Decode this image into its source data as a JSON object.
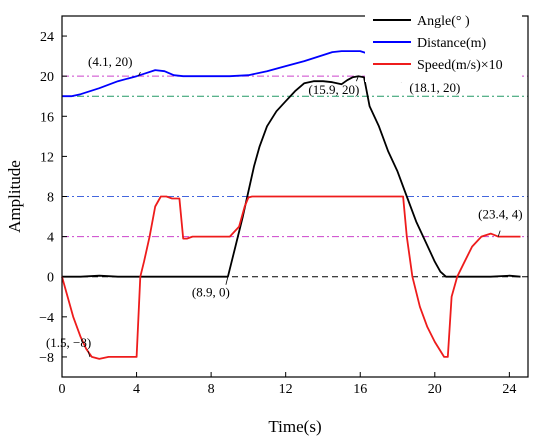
{
  "chart_data": {
    "type": "line",
    "xlabel": "Time(s)",
    "ylabel": "Amplitude",
    "xlim": [
      0,
      25
    ],
    "ylim": [
      -10,
      26
    ],
    "xticks": [
      0,
      4,
      8,
      12,
      16,
      20,
      24
    ],
    "yticks": [
      -8,
      -4,
      0,
      4,
      8,
      12,
      16,
      20,
      24
    ],
    "ytick_labels": [
      "−8",
      "−4",
      "0",
      "4",
      "8",
      "12",
      "16",
      "20",
      "24"
    ],
    "legend_position": "top-right",
    "series": [
      {
        "name": "Angle(° )",
        "color": "#000000",
        "x": [
          0,
          1,
          2,
          3,
          4,
          5,
          6,
          7,
          8,
          8.6,
          8.9,
          9.3,
          9.7,
          10,
          10.3,
          10.6,
          11,
          11.5,
          12,
          12.5,
          13,
          13.5,
          14,
          14.5,
          15,
          15.3,
          15.6,
          15.9,
          16.2,
          16.5,
          17,
          17.5,
          18,
          18.5,
          19,
          19.5,
          20,
          20.3,
          20.6,
          21,
          22,
          23,
          24,
          24.6
        ],
        "y": [
          0,
          0,
          0.1,
          0,
          0,
          0,
          0,
          0,
          0,
          0,
          0,
          3,
          6,
          8.5,
          11,
          13,
          15,
          16.5,
          17.5,
          18.5,
          19.3,
          19.5,
          19.5,
          19.4,
          19.2,
          19.6,
          19.9,
          20,
          19.9,
          17,
          15,
          12.5,
          10.5,
          8,
          5.5,
          3.5,
          1.5,
          0.5,
          0,
          0,
          0,
          0,
          0.1,
          0
        ]
      },
      {
        "name": "Distance(m)",
        "color": "#0000ff",
        "x": [
          0,
          0.5,
          1,
          2,
          3,
          4,
          4.5,
          5,
          5.5,
          6,
          6.5,
          7,
          8,
          9,
          10,
          11,
          12,
          13,
          14,
          14.5,
          15,
          15.5,
          16,
          16.5,
          17,
          18,
          19,
          20,
          21,
          22,
          23,
          24,
          24.6
        ],
        "y": [
          18,
          18,
          18.2,
          18.8,
          19.5,
          20,
          20.3,
          20.6,
          20.5,
          20.1,
          20,
          20,
          20,
          20,
          20.1,
          20.5,
          21,
          21.5,
          22.1,
          22.4,
          22.5,
          22.5,
          22.5,
          22.2,
          21.5,
          20.6,
          20,
          19.8,
          20,
          20.3,
          20,
          19.9,
          20
        ]
      },
      {
        "name": "Speed(m/s)×10",
        "color": "#ee1c1c",
        "x": [
          0,
          0.3,
          0.6,
          1,
          1.3,
          1.6,
          2,
          2.5,
          3,
          3.5,
          4,
          4.2,
          4.4,
          4.7,
          5,
          5.3,
          5.6,
          5.9,
          6.3,
          6.5,
          6.7,
          7,
          8,
          9,
          9.5,
          9.8,
          10,
          10.2,
          10.5,
          11,
          12,
          13,
          14,
          15,
          16,
          17,
          18,
          18.3,
          18.5,
          18.8,
          19.2,
          19.6,
          20,
          20.5,
          20.7,
          20.9,
          21.2,
          21.6,
          22,
          22.5,
          23,
          23.4,
          24,
          24.6
        ],
        "y": [
          0,
          -2,
          -4,
          -6,
          -7.2,
          -8,
          -8.2,
          -8,
          -8,
          -8,
          -8,
          0,
          1.5,
          4,
          7,
          8,
          8,
          7.8,
          7.8,
          3.8,
          3.8,
          4,
          4,
          4,
          5,
          7,
          7.9,
          8,
          8,
          8,
          8,
          8,
          8,
          8,
          8,
          8,
          8,
          8,
          4,
          0,
          -3,
          -5,
          -6.5,
          -8,
          -8,
          -2,
          0,
          1.5,
          3,
          4,
          4.3,
          4,
          4,
          4
        ]
      }
    ],
    "reference_lines": [
      {
        "y": 20,
        "color": "#cc44cc"
      },
      {
        "y": 18,
        "color": "#229966"
      },
      {
        "y": 8,
        "color": "#4466dd"
      },
      {
        "y": 4,
        "color": "#cc44cc"
      },
      {
        "y": 0,
        "color": "#000000"
      }
    ],
    "annotations": [
      {
        "text": "(4.1, 20)",
        "x": 4.1,
        "y": 20
      },
      {
        "text": "(15.9, 20)",
        "x": 15.9,
        "y": 20
      },
      {
        "text": "(18.1, 20)",
        "x": 18.1,
        "y": 20
      },
      {
        "text": "(8.9, 0)",
        "x": 8.9,
        "y": 0
      },
      {
        "text": "(1.5, −8)",
        "x": 1.5,
        "y": -8
      },
      {
        "text": "(23.4, 4)",
        "x": 23.4,
        "y": 4
      }
    ]
  }
}
